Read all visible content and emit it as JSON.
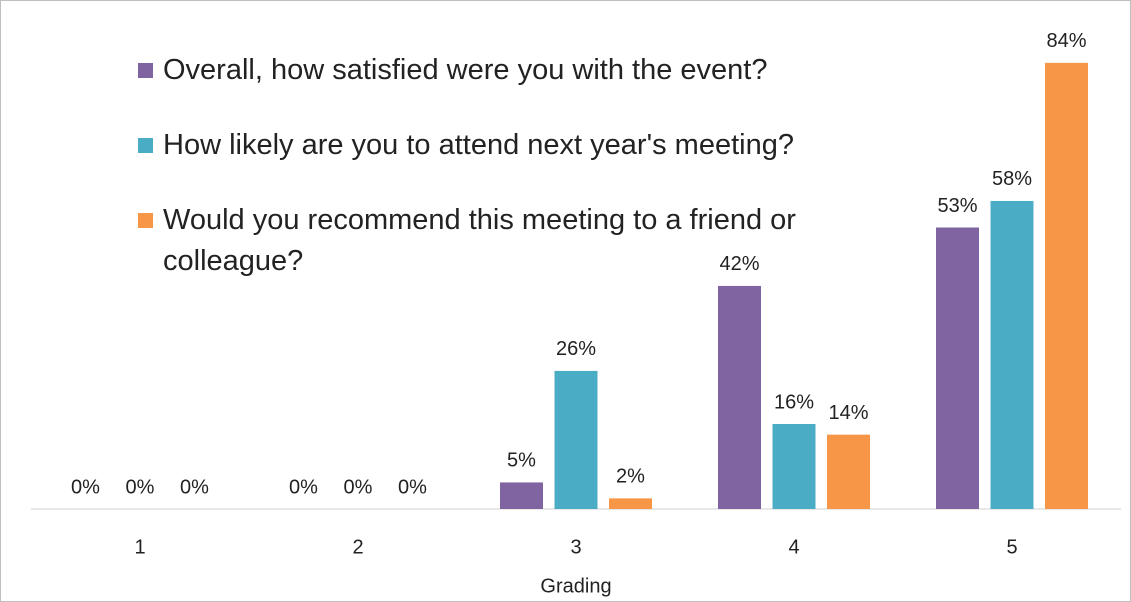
{
  "chart_data": {
    "type": "bar",
    "x_label": "Grading",
    "categories": [
      "1",
      "2",
      "3",
      "4",
      "5"
    ],
    "series": [
      {
        "name": "Overall, how satisfied were you with the event?",
        "color": "#8064a2",
        "values": [
          0,
          0,
          5,
          42,
          53
        ],
        "value_labels": [
          "0%",
          "0%",
          "5%",
          "42%",
          "53%"
        ]
      },
      {
        "name": "How likely are you to attend next year's meeting?",
        "color": "#4bacc6",
        "values": [
          0,
          0,
          26,
          16,
          58
        ],
        "value_labels": [
          "0%",
          "0%",
          "26%",
          "16%",
          "58%"
        ]
      },
      {
        "name": "Would you recommend this meeting to a friend or colleague?",
        "color": "#f79646",
        "values": [
          0,
          0,
          2,
          14,
          84
        ],
        "value_labels": [
          "0%",
          "0%",
          "2%",
          "14%",
          "84%"
        ]
      }
    ],
    "ylim": [
      0,
      90
    ],
    "legend": "upper left"
  }
}
